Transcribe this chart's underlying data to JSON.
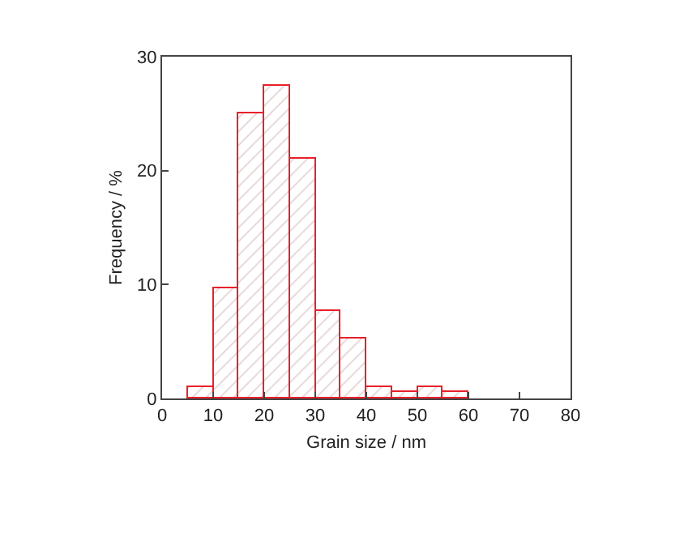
{
  "chart_data": {
    "type": "histogram",
    "xlabel": "Grain size / nm",
    "ylabel": "Frequency / %",
    "bins": [
      5,
      10,
      15,
      20,
      25,
      30,
      35,
      40,
      45,
      50,
      55,
      60
    ],
    "values": [
      1,
      9.6,
      25,
      27.4,
      21.1,
      7.7,
      5.3,
      1,
      0.5,
      1,
      0.5
    ],
    "color": "#e8202a",
    "xlim": [
      0,
      80
    ],
    "xticks": [
      0,
      10,
      20,
      30,
      40,
      50,
      60,
      70,
      80
    ],
    "ylim": [
      0,
      30
    ],
    "yticks": [
      0,
      10,
      20,
      30
    ]
  }
}
